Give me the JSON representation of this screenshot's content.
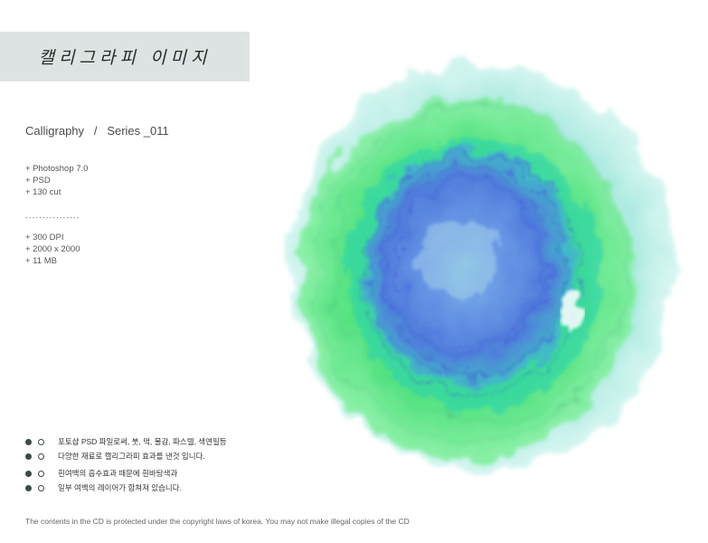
{
  "header": {
    "title": "캘리그라피 이미지"
  },
  "series": {
    "label": "Calligraphy   /   Series _011"
  },
  "specs_top": [
    "+ Photoshop 7.0",
    "+ PSD",
    "+ 130 cut"
  ],
  "separator": "................",
  "specs_bottom": [
    "+ 300 DPI",
    "+ 2000 x 2000",
    "+ 11 MB"
  ],
  "notes": [
    "포토샵 PSD 파일로써, 붓, 먹, 물감, 파스텔, 색연필등",
    "다양한 재료로 캘리그라피 효과를 낸것 입니다.",
    "흰여백의 흡수효과 때문에 흰바탕색과",
    "일부 여백의 레이어가 합쳐져 있습니다."
  ],
  "footer": {
    "copyright": "The contents in the CD is protected under the copyright laws of korea. You may not make illegal copies of the CD"
  },
  "colors": {
    "banner": "#dde3e2",
    "outer_wash": "#8fe3d6",
    "mid_wash": "#3fe06a",
    "core_wash": "#4c6fe0"
  }
}
